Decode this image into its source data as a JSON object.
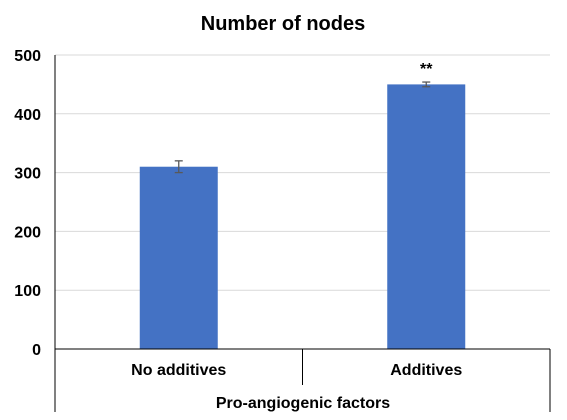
{
  "chart_data": {
    "type": "bar",
    "title": "Number of nodes",
    "xlabel": "Pro-angiogenic factors",
    "ylabel": "",
    "categories": [
      "No additives",
      "Additives"
    ],
    "values": [
      310,
      450
    ],
    "error": [
      10,
      4
    ],
    "annotations": [
      "",
      "**"
    ],
    "ylim": [
      0,
      500
    ],
    "yticks": [
      0,
      100,
      200,
      300,
      400,
      500
    ],
    "grid": true,
    "legend": "none",
    "colors": {
      "bar": "#4472C4",
      "grid": "#D9D9D9",
      "axis": "#000000",
      "error": "#595959"
    }
  }
}
